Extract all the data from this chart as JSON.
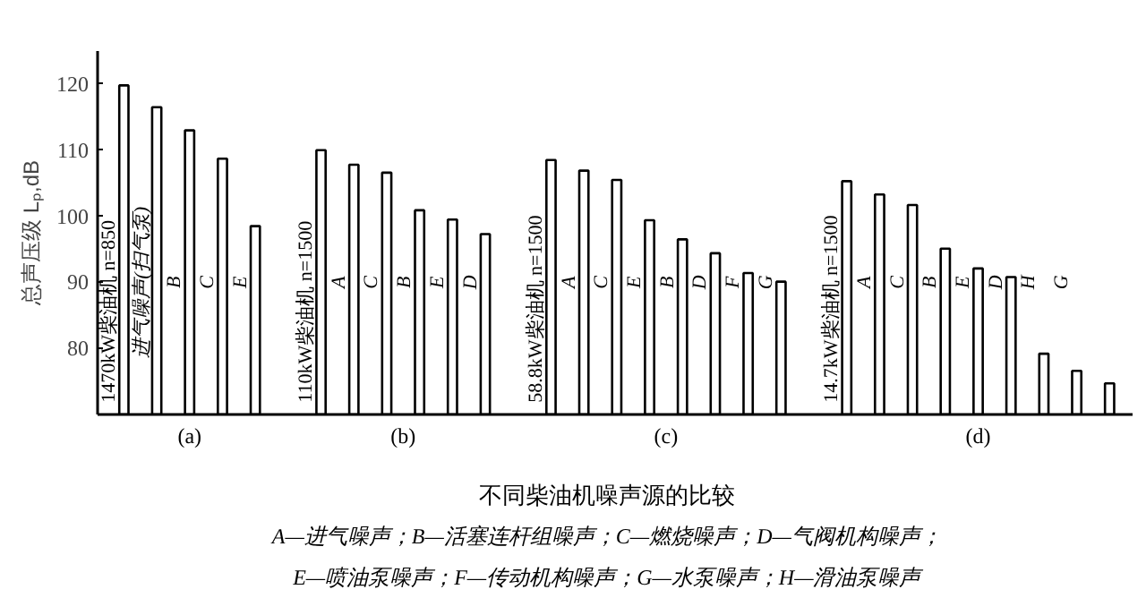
{
  "chart_data": {
    "type": "bar",
    "title": "不同柴油机噪声源的比较",
    "ylabel": "总声压级 Lₚ,dB",
    "categories": [
      "1470kW柴油机 n=850",
      "进气噪声(扫气泵)",
      "B",
      "C",
      "E",
      null,
      "110kW柴油机 n=1500",
      "A",
      "C",
      "B",
      "E",
      "D",
      null,
      "58.8kW柴油机 n=1500",
      "A",
      "C",
      "E",
      "B",
      "D",
      "F",
      "G",
      null,
      "14.7kW柴油机 n=1500",
      "A",
      "C",
      "B",
      "E",
      "D",
      "H",
      "G",
      null
    ],
    "values": [
      119.8,
      116.5,
      113,
      108.7,
      98.5,
      null,
      110,
      107.8,
      106.6,
      100.9,
      99.5,
      97.3,
      null,
      108.5,
      106.9,
      105.5,
      99.4,
      96.5,
      94.4,
      91.4,
      90.1,
      null,
      105.3,
      103.3,
      101.7,
      95.1,
      92.1,
      90.8,
      79.2,
      76.6,
      74.7
    ],
    "color": "#ffffff",
    "ylim": [
      70,
      125
    ],
    "yticks": [
      80,
      90,
      100,
      110,
      120
    ],
    "grid": false,
    "tick_labels": "y",
    "annotations": [
      "(a)",
      "(b)",
      "(c)",
      "(d)",
      "A—进气噪声；B—活塞连杆组噪声；C—燃烧噪声；D—气阀机构噪声；",
      "E—喷油泵噪声；F—传动机构噪声；G—水泵噪声；H—滑油泵噪声"
    ]
  }
}
